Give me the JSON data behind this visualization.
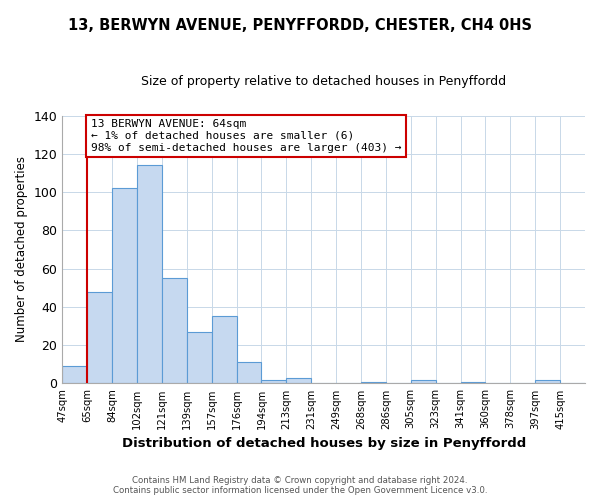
{
  "title": "13, BERWYN AVENUE, PENYFFORDD, CHESTER, CH4 0HS",
  "subtitle": "Size of property relative to detached houses in Penyffordd",
  "xlabel": "Distribution of detached houses by size in Penyffordd",
  "ylabel": "Number of detached properties",
  "bin_labels": [
    "47sqm",
    "65sqm",
    "84sqm",
    "102sqm",
    "121sqm",
    "139sqm",
    "157sqm",
    "176sqm",
    "194sqm",
    "213sqm",
    "231sqm",
    "249sqm",
    "268sqm",
    "286sqm",
    "305sqm",
    "323sqm",
    "341sqm",
    "360sqm",
    "378sqm",
    "397sqm",
    "415sqm"
  ],
  "bar_values": [
    9,
    48,
    102,
    114,
    55,
    27,
    35,
    11,
    2,
    3,
    0,
    0,
    1,
    0,
    2,
    0,
    1,
    0,
    0,
    2,
    0
  ],
  "bar_color": "#c6d9f0",
  "bar_edge_color": "#5b9bd5",
  "ylim": [
    0,
    140
  ],
  "yticks": [
    0,
    20,
    40,
    60,
    80,
    100,
    120,
    140
  ],
  "annotation_title": "13 BERWYN AVENUE: 64sqm",
  "annotation_line1": "← 1% of detached houses are smaller (6)",
  "annotation_line2": "98% of semi-detached houses are larger (403) →",
  "annotation_box_color": "#ffffff",
  "annotation_box_edge": "#cc0000",
  "property_line_color": "#cc0000",
  "footer_line1": "Contains HM Land Registry data © Crown copyright and database right 2024.",
  "footer_line2": "Contains public sector information licensed under the Open Government Licence v3.0."
}
